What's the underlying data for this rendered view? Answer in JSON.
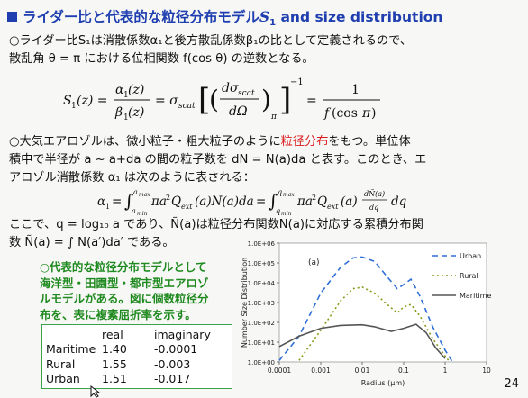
{
  "slide": {
    "title_prefix": "ライダー比と代表的な粒径分布モデル",
    "title_var": "S",
    "title_sub": "1",
    "title_suffix": " and size distribution",
    "page_number": "24"
  },
  "paragraph1": {
    "line1": "○ライダー比S₁は消散係数α₁と後方散乱係数β₁の比として定義されるので、",
    "line2": "散乱角 θ = π における位相関数 f(cos θ) の逆数となる。"
  },
  "equation1": {
    "lhs": "S₁(z) = α₁(z) / β₁(z) = σscat [ ( dσscat / dΩ )π ]⁻¹ = 1 / f(cos π)"
  },
  "paragraph2": {
    "line1_a": "○大気エアロゾルは、微小粒子・粗大粒子のように",
    "line1_red": "粒径分布",
    "line1_b": "をもつ。単位体",
    "line2": "積中で半径が a ~ a+da の間の粒子数を dN = N(a)da と表す。このとき、エ",
    "line3": "アロゾル消散係数 α₁ は次のように表される："
  },
  "equation2": {
    "text": "α₁ = ∫ πa²Qext(a)N(a)da = ∫ πa²Qext(a) (dÑ(a)/dq) dq"
  },
  "paragraph3": {
    "line1": "ここで、q = log₁₀ a であり、Ñ(a)は粒径分布関数N(a)に対応する累積分布関",
    "line2": "数 Ñ(a) = ∫ N(a′)da′ である。"
  },
  "note": {
    "line1": "○代表的な粒径分布モデルとして",
    "line2": "海洋型・田園型・都市型エアロゾ",
    "line3": "ルモデルがある。図に個数粒径分",
    "line4": "布を、表に複素屈折率を示す。"
  },
  "refractive_table": {
    "headers": [
      "",
      "real",
      "imaginary"
    ],
    "rows": [
      [
        "Maritime",
        "1.40",
        "-0.0001"
      ],
      [
        "Rural",
        "1.55",
        "-0.003"
      ],
      [
        "Urban",
        "1.51",
        "-0.017"
      ]
    ]
  },
  "chart_data": {
    "type": "line",
    "panel_label": "(a)",
    "xlabel": "Radius (μm)",
    "ylabel": "Number Size Distribution",
    "xscale": "log",
    "yscale": "log",
    "xlim": [
      0.0001,
      10
    ],
    "ylim": [
      1,
      1000000
    ],
    "x_ticks": [
      "0.0001",
      "0.001",
      "0.01",
      "0.1",
      "1",
      "10"
    ],
    "y_ticks": [
      "1.0E+00",
      "1.0E+01",
      "1.0E+02",
      "1.0E+03",
      "1.0E+04",
      "1.0E+05",
      "1.0E+06"
    ],
    "legend_position": "top-right",
    "series": [
      {
        "name": "Urban",
        "color": "#2e6fd6",
        "dash": "6,4",
        "points": [
          [
            0.0001,
            1.2
          ],
          [
            0.0003,
            20
          ],
          [
            0.001,
            3000
          ],
          [
            0.003,
            60000
          ],
          [
            0.006,
            180000
          ],
          [
            0.01,
            200000
          ],
          [
            0.02,
            120000
          ],
          [
            0.04,
            20000
          ],
          [
            0.07,
            5000
          ],
          [
            0.1,
            8000
          ],
          [
            0.15,
            15000
          ],
          [
            0.25,
            2000
          ],
          [
            0.5,
            60
          ],
          [
            1,
            4
          ],
          [
            1.5,
            1
          ]
        ]
      },
      {
        "name": "Rural",
        "color": "#8a9a1a",
        "dash": "2,3",
        "points": [
          [
            0.0003,
            1.2
          ],
          [
            0.001,
            40
          ],
          [
            0.003,
            1200
          ],
          [
            0.006,
            5000
          ],
          [
            0.01,
            6000
          ],
          [
            0.02,
            3000
          ],
          [
            0.04,
            800
          ],
          [
            0.07,
            300
          ],
          [
            0.1,
            600
          ],
          [
            0.15,
            800
          ],
          [
            0.25,
            200
          ],
          [
            0.5,
            15
          ],
          [
            1,
            2
          ],
          [
            1.3,
            1
          ]
        ]
      },
      {
        "name": "Maritime",
        "color": "#555555",
        "dash": "",
        "points": [
          [
            0.0001,
            6
          ],
          [
            0.0003,
            20
          ],
          [
            0.001,
            50
          ],
          [
            0.003,
            70
          ],
          [
            0.01,
            75
          ],
          [
            0.02,
            60
          ],
          [
            0.05,
            35
          ],
          [
            0.1,
            50
          ],
          [
            0.2,
            80
          ],
          [
            0.35,
            30
          ],
          [
            0.6,
            5
          ],
          [
            1,
            1.5
          ]
        ]
      }
    ]
  }
}
